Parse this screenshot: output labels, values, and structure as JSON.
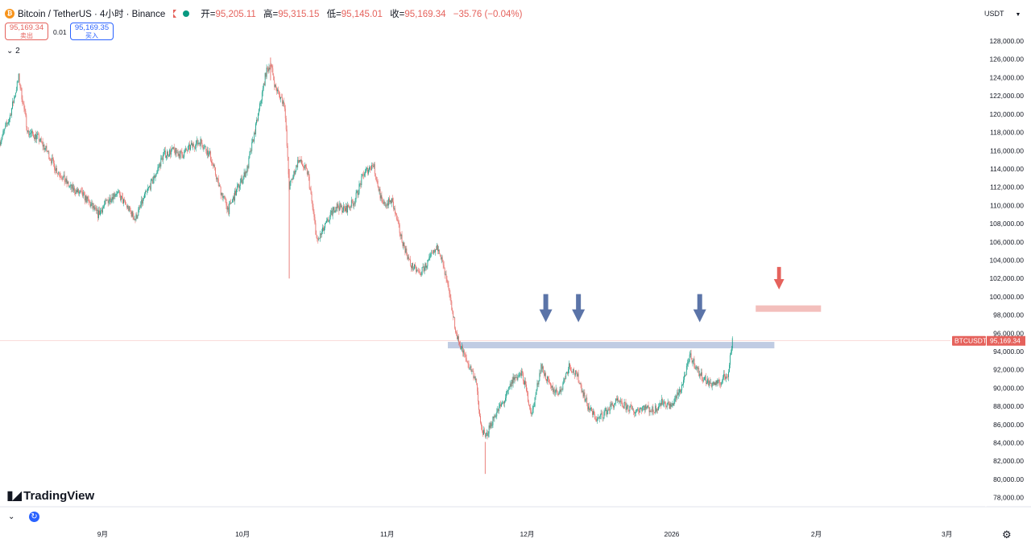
{
  "header": {
    "symbol_title": "Bitcoin / TetherUS · 4小时 · Binance",
    "coin_icon": "bitcoin-icon",
    "ohlc": {
      "open_label": "开=",
      "open": "95,205.11",
      "high_label": "高=",
      "high": "95,315.15",
      "low_label": "低=",
      "low": "95,145.01",
      "close_label": "收=",
      "close": "95,169.34",
      "change": "−35.76 (−0.04%)"
    },
    "sell_price": "95,169.34",
    "sell_label": "卖出",
    "spread": "0.01",
    "buy_price": "95,169.35",
    "buy_label": "买入",
    "indicators_toggle": "2",
    "quote_currency": "USDT"
  },
  "price_label": {
    "symbol": "BTCUSDT",
    "price": "95,169.34"
  },
  "branding": {
    "logo_text": "TradingView"
  },
  "colors": {
    "up": "#089981",
    "down": "#e5625c",
    "accent": "#2962ff",
    "support": "#b9c6e0",
    "resistance": "#f2b8b5",
    "arrow_blue": "#5b74a8",
    "arrow_red": "#e5625c"
  },
  "chart_data": {
    "type": "line",
    "series_style": "candlestick",
    "title": "",
    "xlabel": "",
    "ylabel": "",
    "ylim": [
      77000,
      129500
    ],
    "y_ticks": [
      "128,000.00",
      "126,000.00",
      "124,000.00",
      "122,000.00",
      "120,000.00",
      "118,000.00",
      "116,000.00",
      "114,000.00",
      "112,000.00",
      "110,000.00",
      "108,000.00",
      "106,000.00",
      "104,000.00",
      "102,000.00",
      "100,000.00",
      "98,000.00",
      "96,000.00",
      "94,000.00",
      "92,000.00",
      "90,000.00",
      "88,000.00",
      "86,000.00",
      "84,000.00",
      "82,000.00",
      "80,000.00",
      "78,000.00"
    ],
    "x_ticks": [
      {
        "label": "9月",
        "date": "2025-09-01"
      },
      {
        "label": "10月",
        "date": "2025-10-01"
      },
      {
        "label": "11月",
        "date": "2025-11-01"
      },
      {
        "label": "12月",
        "date": "2025-12-01"
      },
      {
        "label": "2026",
        "date": "2026-01-01"
      },
      {
        "label": "2月",
        "date": "2026-02-01"
      },
      {
        "label": "3月",
        "date": "2026-03-01"
      }
    ],
    "xlim": [
      "2025-08-10",
      "2026-03-09"
    ],
    "price_path": [
      [
        "2025-08-10",
        117000
      ],
      [
        "2025-08-12",
        119500
      ],
      [
        "2025-08-14",
        124000
      ],
      [
        "2025-08-16",
        118000
      ],
      [
        "2025-08-18",
        117500
      ],
      [
        "2025-08-20",
        116000
      ],
      [
        "2025-08-22",
        114000
      ],
      [
        "2025-08-25",
        112000
      ],
      [
        "2025-08-28",
        111000
      ],
      [
        "2025-08-31",
        109000
      ],
      [
        "2025-09-02",
        110500
      ],
      [
        "2025-09-04",
        111500
      ],
      [
        "2025-09-06",
        110000
      ],
      [
        "2025-09-08",
        108500
      ],
      [
        "2025-09-10",
        111000
      ],
      [
        "2025-09-12",
        113000
      ],
      [
        "2025-09-14",
        115500
      ],
      [
        "2025-09-16",
        116000
      ],
      [
        "2025-09-18",
        115500
      ],
      [
        "2025-09-20",
        116500
      ],
      [
        "2025-09-22",
        117000
      ],
      [
        "2025-09-24",
        115500
      ],
      [
        "2025-09-26",
        112000
      ],
      [
        "2025-09-28",
        109500
      ],
      [
        "2025-09-30",
        112000
      ],
      [
        "2025-10-02",
        114000
      ],
      [
        "2025-10-04",
        119000
      ],
      [
        "2025-10-06",
        124500
      ],
      [
        "2025-10-07",
        125500
      ],
      [
        "2025-10-08",
        123000
      ],
      [
        "2025-10-10",
        121000
      ],
      [
        "2025-10-11",
        112000
      ],
      [
        "2025-10-13",
        115000
      ],
      [
        "2025-10-15",
        113500
      ],
      [
        "2025-10-17",
        106000
      ],
      [
        "2025-10-19",
        108000
      ],
      [
        "2025-10-21",
        110000
      ],
      [
        "2025-10-23",
        109500
      ],
      [
        "2025-10-25",
        110500
      ],
      [
        "2025-10-27",
        113500
      ],
      [
        "2025-10-29",
        114500
      ],
      [
        "2025-10-31",
        110000
      ],
      [
        "2025-11-02",
        110500
      ],
      [
        "2025-11-04",
        106500
      ],
      [
        "2025-11-06",
        103500
      ],
      [
        "2025-11-08",
        102500
      ],
      [
        "2025-11-10",
        104000
      ],
      [
        "2025-11-12",
        105500
      ],
      [
        "2025-11-14",
        101000
      ],
      [
        "2025-11-16",
        95500
      ],
      [
        "2025-11-18",
        93000
      ],
      [
        "2025-11-20",
        91000
      ],
      [
        "2025-11-21",
        86000
      ],
      [
        "2025-11-22",
        84500
      ],
      [
        "2025-11-24",
        87000
      ],
      [
        "2025-11-26",
        88500
      ],
      [
        "2025-11-28",
        91000
      ],
      [
        "2025-11-30",
        91500
      ],
      [
        "2025-12-02",
        87000
      ],
      [
        "2025-12-04",
        92500
      ],
      [
        "2025-12-06",
        90000
      ],
      [
        "2025-12-08",
        89500
      ],
      [
        "2025-12-10",
        92500
      ],
      [
        "2025-12-12",
        91000
      ],
      [
        "2025-12-14",
        88000
      ],
      [
        "2025-12-16",
        86500
      ],
      [
        "2025-12-18",
        87500
      ],
      [
        "2025-12-20",
        88500
      ],
      [
        "2025-12-22",
        88000
      ],
      [
        "2025-12-24",
        87500
      ],
      [
        "2025-12-26",
        88000
      ],
      [
        "2025-12-28",
        87500
      ],
      [
        "2025-12-30",
        88500
      ],
      [
        "2026-01-01",
        88000
      ],
      [
        "2026-01-03",
        90000
      ],
      [
        "2026-01-05",
        93500
      ],
      [
        "2026-01-07",
        91500
      ],
      [
        "2026-01-09",
        90500
      ],
      [
        "2026-01-11",
        90500
      ],
      [
        "2026-01-13",
        91500
      ],
      [
        "2026-01-14",
        95200
      ]
    ],
    "extremes": {
      "high": 126200,
      "low": 80600
    },
    "last_price": 95169.34,
    "annotations": [
      {
        "type": "horizontal_zone",
        "level": 94700,
        "from": "2025-11-14",
        "to": "2026-01-23",
        "color": "support"
      },
      {
        "type": "horizontal_zone",
        "level": 98700,
        "from": "2026-01-19",
        "to": "2026-02-02",
        "color": "resistance"
      },
      {
        "type": "arrow_down",
        "date": "2025-12-05",
        "level": 97200,
        "color": "arrow_blue"
      },
      {
        "type": "arrow_down",
        "date": "2025-12-12",
        "level": 97200,
        "color": "arrow_blue"
      },
      {
        "type": "arrow_down",
        "date": "2026-01-07",
        "level": 97200,
        "color": "arrow_blue"
      },
      {
        "type": "arrow_down",
        "date": "2026-01-24",
        "level": 100800,
        "color": "arrow_red"
      }
    ],
    "grid": false,
    "legend": "none"
  }
}
